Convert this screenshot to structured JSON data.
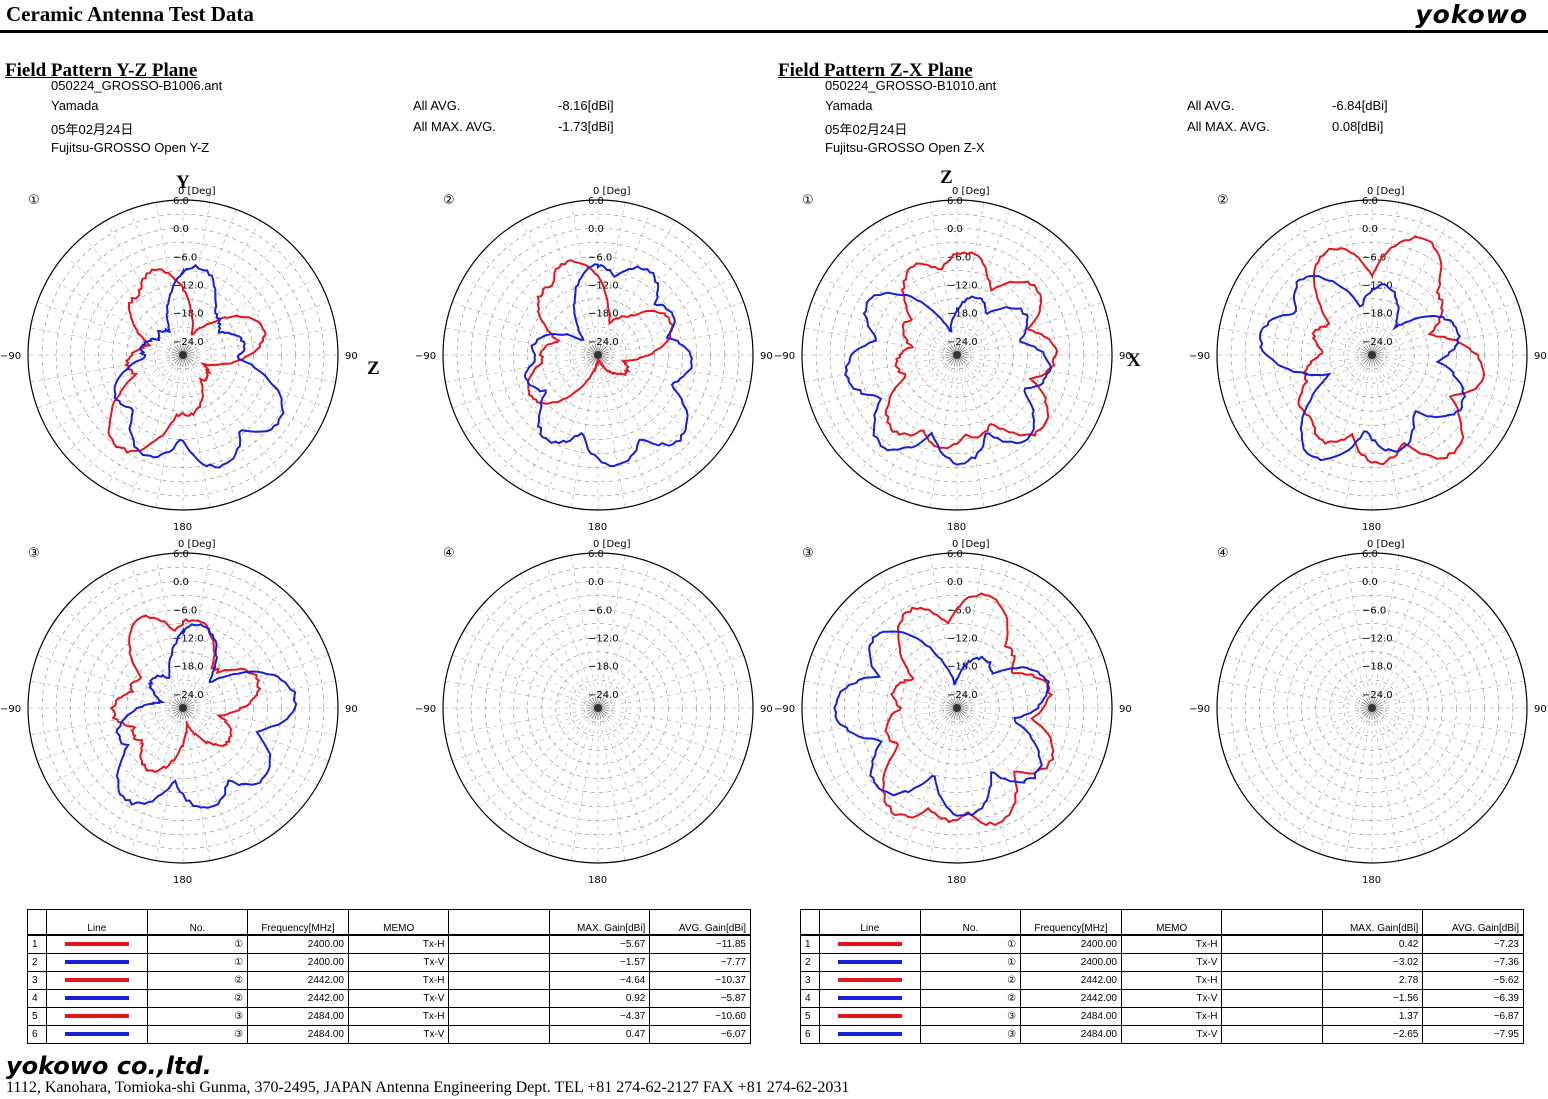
{
  "header": {
    "title": "Ceramic Antenna Test Data",
    "brand": "yokowo"
  },
  "panels": [
    {
      "section_title": "Field Pattern  Y-Z Plane",
      "file": "050224_GROSSO-B1006.ant",
      "operator": "Yamada",
      "date": "05年02月24日",
      "description": "Fujitsu-GROSSO Open Y-Z",
      "avg_label": "All AVG.",
      "avg_value": "-8.16[dBi]",
      "max_label": "All MAX. AVG.",
      "max_value": "-1.73[dBi]",
      "axis_top": "Y",
      "axis_right": "Z"
    },
    {
      "section_title": "Field Pattern  Z-X Plane",
      "file": "050224_GROSSO-B1010.ant",
      "operator": "Yamada",
      "date": "05年02月24日",
      "description": "Fujitsu-GROSSO Open Z-X",
      "avg_label": "All AVG.",
      "avg_value": "-6.84[dBi]",
      "max_label": "All MAX. AVG.",
      "max_value": "0.08[dBi]",
      "axis_top": "Z",
      "axis_right": "X"
    }
  ],
  "polar": {
    "angle_labels": {
      "top": "0 [Deg]",
      "right": "90",
      "left": "−90",
      "bottom": "180"
    },
    "ring_labels": [
      "6.0",
      "0.0",
      "−6.0",
      "−12.0",
      "−18.0",
      "−24.0"
    ]
  },
  "legend_columns": [
    "Line",
    "No.",
    "Frequency[MHz]",
    "MEMO",
    "",
    "MAX. Gain[dBi]",
    "AVG. Gain[dBi]"
  ],
  "legend_tables": [
    [
      {
        "row": "1",
        "color": "#e8141b",
        "no": "①",
        "freq": "2400.00",
        "memo": "Tx-H",
        "max": "−5.67",
        "avg": "−11.85"
      },
      {
        "row": "2",
        "color": "#1620d8",
        "no": "①",
        "freq": "2400.00",
        "memo": "Tx-V",
        "max": "−1.57",
        "avg": "−7.77"
      },
      {
        "row": "3",
        "color": "#e8141b",
        "no": "②",
        "freq": "2442.00",
        "memo": "Tx-H",
        "max": "−4.64",
        "avg": "−10.37"
      },
      {
        "row": "4",
        "color": "#1620d8",
        "no": "②",
        "freq": "2442.00",
        "memo": "Tx-V",
        "max": "0.92",
        "avg": "−5.87"
      },
      {
        "row": "5",
        "color": "#e8141b",
        "no": "③",
        "freq": "2484.00",
        "memo": "Tx-H",
        "max": "−4.37",
        "avg": "−10.60"
      },
      {
        "row": "6",
        "color": "#1620d8",
        "no": "③",
        "freq": "2484.00",
        "memo": "Tx-V",
        "max": "0.47",
        "avg": "−6.07"
      }
    ],
    [
      {
        "row": "1",
        "color": "#e8141b",
        "no": "①",
        "freq": "2400.00",
        "memo": "Tx-H",
        "max": "0.42",
        "avg": "−7.23"
      },
      {
        "row": "2",
        "color": "#1620d8",
        "no": "①",
        "freq": "2400.00",
        "memo": "Tx-V",
        "max": "−3.02",
        "avg": "−7.36"
      },
      {
        "row": "3",
        "color": "#e8141b",
        "no": "②",
        "freq": "2442.00",
        "memo": "Tx-H",
        "max": "2.78",
        "avg": "−5.62"
      },
      {
        "row": "4",
        "color": "#1620d8",
        "no": "②",
        "freq": "2442.00",
        "memo": "Tx-V",
        "max": "−1.56",
        "avg": "−6.39"
      },
      {
        "row": "5",
        "color": "#e8141b",
        "no": "③",
        "freq": "2484.00",
        "memo": "Tx-H",
        "max": "1.37",
        "avg": "−6.87"
      },
      {
        "row": "6",
        "color": "#1620d8",
        "no": "③",
        "freq": "2484.00",
        "memo": "Tx-V",
        "max": "−2.65",
        "avg": "−7.95"
      }
    ]
  ],
  "footer": {
    "company": "yokowo co.,ltd.",
    "address": "1112, Kanohara, Tomioka-shi Gunma, 370-2495, JAPAN  Antenna Engineering Dept. TEL +81 274-62-2127 FAX +81 274-62-2031"
  },
  "chart_data": [
    {
      "type": "polar",
      "plane": "Y-Z",
      "panel": "①",
      "rlim": [
        -27,
        6
      ],
      "rticks": [
        6,
        0,
        -6,
        -12,
        -18,
        -24
      ],
      "series": [
        {
          "name": "Tx-H",
          "color": "#e8141b",
          "lobes": [
            [
              -145,
              -3
            ],
            [
              -100,
              -15
            ],
            [
              -40,
              -11
            ],
            [
              -20,
              -8
            ],
            [
              10,
              -25
            ],
            [
              55,
              -17
            ],
            [
              72,
              -9
            ],
            [
              100,
              -27
            ],
            [
              135,
              -20
            ],
            [
              175,
              -14
            ],
            [
              -175,
              -14
            ],
            [
              -135,
              -14
            ]
          ]
        },
        {
          "name": "Tx-V",
          "color": "#1620d8",
          "lobes": [
            [
              -80,
              -18
            ],
            [
              -45,
              -20
            ],
            [
              10,
              -8
            ],
            [
              40,
              -16
            ],
            [
              80,
              -14
            ],
            [
              125,
              -2
            ],
            [
              160,
              -2
            ],
            [
              -160,
              -4
            ],
            [
              -125,
              -10
            ]
          ]
        }
      ]
    },
    {
      "type": "polar",
      "plane": "Y-Z",
      "panel": "②",
      "rlim": [
        -27,
        6
      ],
      "rticks": [
        6,
        0,
        -6,
        -12,
        -18,
        -24
      ],
      "series": [
        {
          "name": "Tx-H",
          "color": "#e8141b",
          "lobes": [
            [
              -40,
              -9
            ],
            [
              -18,
              -6
            ],
            [
              -60,
              -17
            ],
            [
              -90,
              -15
            ],
            [
              5,
              -20
            ],
            [
              45,
              -16
            ],
            [
              65,
              -10
            ],
            [
              120,
              -20
            ],
            [
              -120,
              -10
            ]
          ]
        },
        {
          "name": "Tx-V",
          "color": "#1620d8",
          "lobes": [
            [
              -85,
              -13
            ],
            [
              0,
              -8
            ],
            [
              30,
              -6
            ],
            [
              60,
              -9
            ],
            [
              95,
              -7
            ],
            [
              135,
              -2
            ],
            [
              170,
              -3
            ],
            [
              -150,
              -6
            ],
            [
              -110,
              -11
            ]
          ]
        }
      ]
    },
    {
      "type": "polar",
      "plane": "Y-Z",
      "panel": "③",
      "rlim": [
        -27,
        6
      ],
      "rticks": [
        6,
        0,
        -6,
        -12,
        -18,
        -24
      ],
      "series": [
        {
          "name": "Tx-H",
          "color": "#e8141b",
          "lobes": [
            [
              -25,
              -6
            ],
            [
              8,
              -8
            ],
            [
              -65,
              -15
            ],
            [
              -92,
              -12
            ],
            [
              -120,
              -15
            ],
            [
              40,
              -16
            ],
            [
              70,
              -10
            ],
            [
              125,
              -15
            ],
            [
              -150,
              -12
            ]
          ]
        },
        {
          "name": "Tx-V",
          "color": "#1620d8",
          "lobes": [
            [
              -45,
              -18
            ],
            [
              12,
              -9
            ],
            [
              85,
              -3
            ],
            [
              130,
              -4
            ],
            [
              165,
              -5
            ],
            [
              -150,
              -4
            ],
            [
              -115,
              -12
            ]
          ]
        }
      ]
    },
    {
      "type": "polar",
      "plane": "Y-Z",
      "panel": "④",
      "rlim": [
        -27,
        6
      ],
      "rticks": [
        6,
        0,
        -6,
        -12,
        -18,
        -24
      ],
      "series": []
    },
    {
      "type": "polar",
      "plane": "Z-X",
      "panel": "①",
      "rlim": [
        -27,
        6
      ],
      "rticks": [
        6,
        0,
        -6,
        -12,
        -18,
        -24
      ],
      "series": [
        {
          "name": "Tx-H",
          "color": "#e8141b",
          "lobes": [
            [
              -25,
              -6
            ],
            [
              5,
              -5
            ],
            [
              30,
              -11
            ],
            [
              50,
              -5
            ],
            [
              90,
              -6
            ],
            [
              130,
              -3
            ],
            [
              165,
              -9
            ],
            [
              -170,
              -7
            ],
            [
              -140,
              -6
            ],
            [
              -100,
              -14
            ],
            [
              -60,
              -14
            ]
          ]
        },
        {
          "name": "Tx-V",
          "color": "#1620d8",
          "lobes": [
            [
              -60,
              -5
            ],
            [
              -100,
              -3
            ],
            [
              -140,
              -2
            ],
            [
              20,
              -14
            ],
            [
              60,
              -10
            ],
            [
              100,
              -7
            ],
            [
              140,
              -4
            ],
            [
              178,
              -4
            ]
          ]
        }
      ]
    },
    {
      "type": "polar",
      "plane": "Z-X",
      "panel": "②",
      "rlim": [
        -27,
        6
      ],
      "rticks": [
        6,
        0,
        -6,
        -12,
        -18,
        -24
      ],
      "series": [
        {
          "name": "Tx-H",
          "color": "#e8141b",
          "lobes": [
            [
              -22,
              -3
            ],
            [
              25,
              0
            ],
            [
              48,
              -8
            ],
            [
              -70,
              -14
            ],
            [
              -110,
              -12
            ],
            [
              100,
              -3
            ],
            [
              140,
              0
            ],
            [
              175,
              -4
            ],
            [
              -150,
              -6
            ],
            [
              -130,
              -8
            ]
          ]
        },
        {
          "name": "Tx-V",
          "color": "#1620d8",
          "lobes": [
            [
              -45,
              -5
            ],
            [
              -80,
              -3
            ],
            [
              10,
              -12
            ],
            [
              75,
              -8
            ],
            [
              120,
              -5
            ],
            [
              165,
              -6
            ],
            [
              -150,
              -2
            ]
          ]
        }
      ]
    },
    {
      "type": "polar",
      "plane": "Z-X",
      "panel": "③",
      "rlim": [
        -27,
        6
      ],
      "rticks": [
        6,
        0,
        -6,
        -12,
        -18,
        -24
      ],
      "series": [
        {
          "name": "Tx-H",
          "color": "#e8141b",
          "lobes": [
            [
              -25,
              -4
            ],
            [
              15,
              -2
            ],
            [
              -75,
              -13
            ],
            [
              -110,
              -11
            ],
            [
              -150,
              -1
            ],
            [
              40,
              -10
            ],
            [
              80,
              -7
            ],
            [
              120,
              -4
            ],
            [
              160,
              -1
            ],
            [
              -175,
              -3
            ]
          ]
        },
        {
          "name": "Tx-V",
          "color": "#1620d8",
          "lobes": [
            [
              -50,
              -4
            ],
            [
              -90,
              -1
            ],
            [
              -135,
              -3
            ],
            [
              30,
              -15
            ],
            [
              75,
              -7
            ],
            [
              130,
              -5
            ],
            [
              175,
              -4
            ]
          ]
        }
      ]
    },
    {
      "type": "polar",
      "plane": "Z-X",
      "panel": "④",
      "rlim": [
        -27,
        6
      ],
      "rticks": [
        6,
        0,
        -6,
        -12,
        -18,
        -24
      ],
      "series": []
    }
  ]
}
